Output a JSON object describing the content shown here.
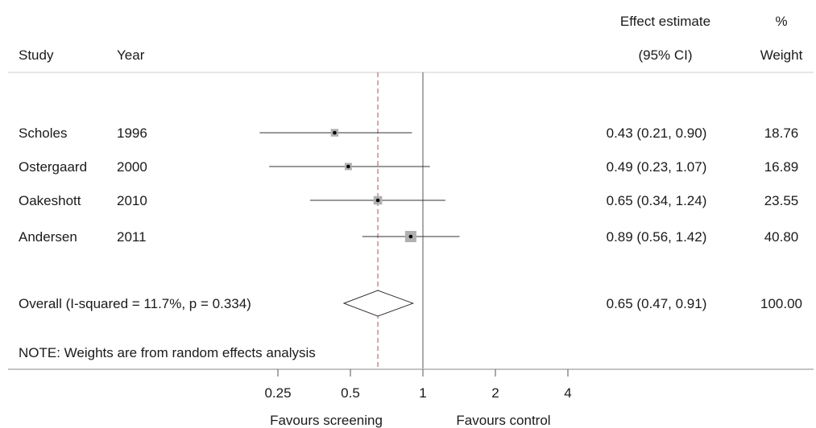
{
  "header": {
    "study": "Study",
    "year": "Year",
    "effect_line1": "Effect estimate",
    "effect_line2": "(95% CI)",
    "weight_line1": "%",
    "weight_line2": "Weight"
  },
  "note": "NOTE: Weights are from random effects analysis",
  "colors": {
    "text": "#1a1a1a",
    "reference_line": "#555555",
    "overall_line": "#b05050",
    "weight_box": "#b0b0b0"
  },
  "chart_data": {
    "type": "forest",
    "x_scale": "log",
    "null_value": 1,
    "overall_effect": 0.65,
    "xlim": [
      0.182,
      5.92
    ],
    "ticks": [
      {
        "value": 0.25,
        "label": "0.25"
      },
      {
        "value": 0.5,
        "label": "0.5"
      },
      {
        "value": 1,
        "label": "1"
      },
      {
        "value": 2,
        "label": "2"
      },
      {
        "value": 4,
        "label": "4"
      }
    ],
    "xlabel_left": "Favours screening",
    "xlabel_right": "Favours control",
    "studies": [
      {
        "study": "Scholes",
        "year": "1996",
        "estimate": 0.43,
        "lower": 0.21,
        "upper": 0.9,
        "ci_text": "0.43 (0.21, 0.90)",
        "weight": 18.76,
        "weight_text": "18.76"
      },
      {
        "study": "Ostergaard",
        "year": "2000",
        "estimate": 0.49,
        "lower": 0.23,
        "upper": 1.07,
        "ci_text": "0.49 (0.23, 1.07)",
        "weight": 16.89,
        "weight_text": "16.89"
      },
      {
        "study": "Oakeshott",
        "year": "2010",
        "estimate": 0.65,
        "lower": 0.34,
        "upper": 1.24,
        "ci_text": "0.65 (0.34, 1.24)",
        "weight": 23.55,
        "weight_text": "23.55"
      },
      {
        "study": "Andersen",
        "year": "2011",
        "estimate": 0.89,
        "lower": 0.56,
        "upper": 1.42,
        "ci_text": "0.89 (0.56, 1.42)",
        "weight": 40.8,
        "weight_text": "40.80"
      }
    ],
    "overall": {
      "label": "Overall  (I-squared = 11.7%, p = 0.334)",
      "estimate": 0.65,
      "lower": 0.47,
      "upper": 0.91,
      "ci_text": "0.65 (0.47, 0.91)",
      "weight_text": "100.00"
    }
  }
}
